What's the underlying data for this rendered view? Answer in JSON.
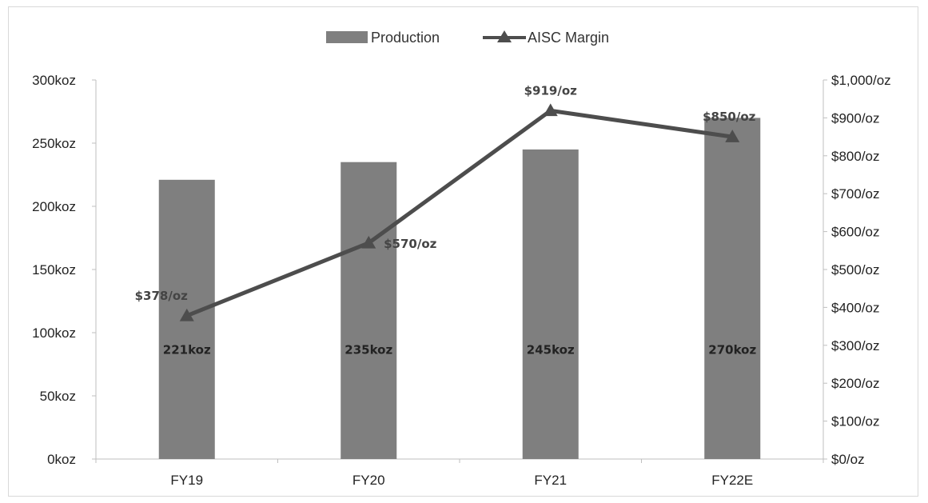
{
  "chart_data": {
    "type": "bar",
    "title": "",
    "categories": [
      "FY19",
      "FY20",
      "FY21",
      "FY22E"
    ],
    "series": [
      {
        "name": "Production",
        "type": "bar",
        "axis": "left",
        "values": [
          221,
          235,
          245,
          270
        ],
        "labels": [
          "221koz",
          "235koz",
          "245koz",
          "270koz"
        ],
        "color": "#7f7f7f"
      },
      {
        "name": "AISC Margin",
        "type": "line",
        "axis": "right",
        "marker": "triangle",
        "values": [
          378,
          570,
          919,
          850
        ],
        "labels": [
          "$378/oz",
          "$570/oz",
          "$919/oz",
          "$850/oz"
        ],
        "color": "#4d4d4d"
      }
    ],
    "y_left": {
      "ylim": [
        0,
        300
      ],
      "ticks": [
        "0koz",
        "50koz",
        "100koz",
        "150koz",
        "200koz",
        "250koz",
        "300koz"
      ]
    },
    "y_right": {
      "ylim": [
        0,
        1000
      ],
      "ticks": [
        "$0/oz",
        "$100/oz",
        "$200/oz",
        "$300/oz",
        "$400/oz",
        "$500/oz",
        "$600/oz",
        "$700/oz",
        "$800/oz",
        "$900/oz",
        "$1,000/oz"
      ]
    },
    "grid": false,
    "legend": "top-center"
  }
}
